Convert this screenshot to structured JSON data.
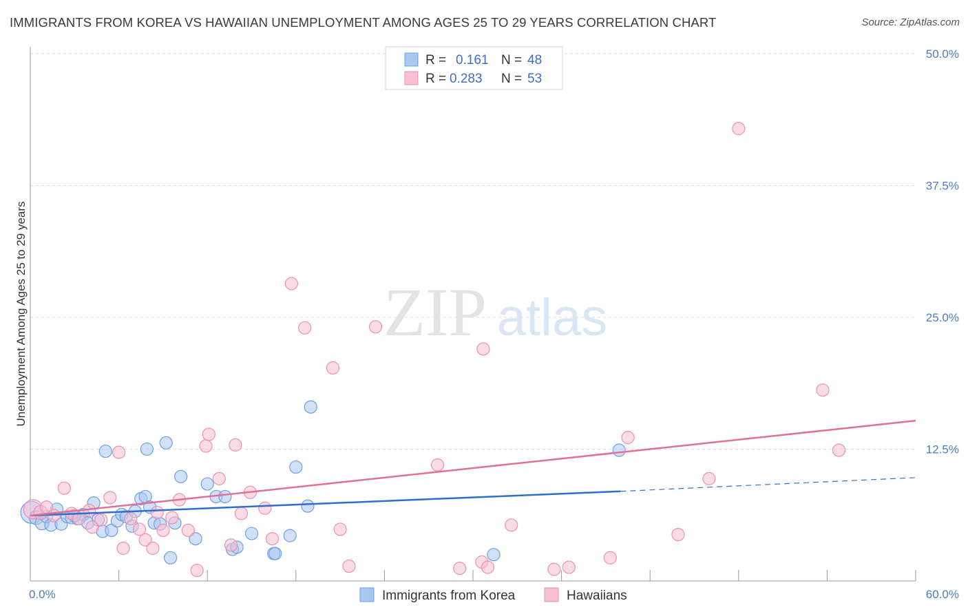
{
  "title": "IMMIGRANTS FROM KOREA VS HAWAIIAN UNEMPLOYMENT AMONG AGES 25 TO 29 YEARS CORRELATION CHART",
  "source": "Source: ZipAtlas.com",
  "watermark": {
    "zip": "ZIP",
    "atlas": "atlas"
  },
  "colors": {
    "korea_fill": "#a9c7ef",
    "korea_stroke": "#6f9fe0",
    "korea_line": "#2f6fcc",
    "hawaii_fill": "#f6c0d2",
    "hawaii_stroke": "#ee8fb0",
    "hawaii_line": "#e0709a",
    "grid": "#dddddd",
    "axis": "#999999",
    "tick_text": "#4a7cc7"
  },
  "chart_data": {
    "type": "scatter",
    "title": "IMMIGRANTS FROM KOREA VS HAWAIIAN UNEMPLOYMENT AMONG AGES 25 TO 29 YEARS CORRELATION CHART",
    "xlabel": "",
    "ylabel": "Unemployment Among Ages 25 to 29 years",
    "xlim": [
      0,
      60
    ],
    "ylim": [
      0,
      52
    ],
    "x_tick_labels": [
      "0.0%",
      "60.0%"
    ],
    "y_ticks": [
      12.5,
      25.0,
      37.5,
      50.0
    ],
    "y_tick_labels": [
      "12.5%",
      "25.0%",
      "37.5%",
      "50.0%"
    ],
    "grid": true,
    "legend": {
      "position": "top-center",
      "entries": [
        {
          "r_label": "R =",
          "r_value": "0.161",
          "n_label": "N =",
          "n_value": "48"
        },
        {
          "r_label": "R =",
          "r_value": "0.283",
          "n_label": "N =",
          "n_value": "53"
        }
      ]
    },
    "bottom_legend": [
      "Immigrants from Korea",
      "Hawaiians"
    ],
    "series": [
      {
        "name": "Immigrants from Korea",
        "trend": {
          "x0": 0,
          "y0": 6.2,
          "x1": 40,
          "y1": 8.5,
          "dash_x1": 60,
          "dash_y1": 9.8
        },
        "points": [
          [
            0.1,
            6.5,
            16
          ],
          [
            0.4,
            6.0,
            10
          ],
          [
            0.8,
            5.5,
            10
          ],
          [
            1.1,
            6.1,
            9
          ],
          [
            1.4,
            5.3,
            9
          ],
          [
            1.8,
            6.8,
            9
          ],
          [
            2.1,
            5.4,
            9
          ],
          [
            2.5,
            6.1,
            9
          ],
          [
            2.8,
            6.0,
            9
          ],
          [
            3.2,
            5.9,
            9
          ],
          [
            3.6,
            6.3,
            9
          ],
          [
            3.9,
            5.5,
            9
          ],
          [
            4.3,
            7.4,
            9
          ],
          [
            4.6,
            5.8,
            9
          ],
          [
            4.9,
            4.7,
            9
          ],
          [
            5.1,
            12.3,
            9
          ],
          [
            5.5,
            4.8,
            9
          ],
          [
            5.9,
            5.7,
            9
          ],
          [
            6.2,
            6.3,
            9
          ],
          [
            6.5,
            6.1,
            9
          ],
          [
            6.9,
            5.2,
            9
          ],
          [
            7.1,
            6.6,
            9
          ],
          [
            7.5,
            7.8,
            9
          ],
          [
            7.8,
            8.0,
            9
          ],
          [
            7.9,
            12.5,
            9
          ],
          [
            8.1,
            7.0,
            9
          ],
          [
            8.4,
            5.5,
            9
          ],
          [
            8.8,
            5.4,
            9
          ],
          [
            9.2,
            13.1,
            9
          ],
          [
            9.5,
            2.2,
            9
          ],
          [
            9.8,
            5.5,
            9
          ],
          [
            10.2,
            9.9,
            9
          ],
          [
            11.2,
            4.0,
            9
          ],
          [
            12.0,
            9.2,
            9
          ],
          [
            12.6,
            8.0,
            9
          ],
          [
            13.2,
            8.0,
            9
          ],
          [
            13.7,
            3.0,
            9
          ],
          [
            14.0,
            3.2,
            9
          ],
          [
            15.0,
            4.5,
            9
          ],
          [
            16.5,
            2.6,
            9
          ],
          [
            16.6,
            2.6,
            9
          ],
          [
            17.6,
            4.3,
            9
          ],
          [
            18.0,
            10.8,
            9
          ],
          [
            18.8,
            7.1,
            9
          ],
          [
            19.0,
            16.5,
            9
          ],
          [
            31.4,
            2.5,
            9
          ],
          [
            39.9,
            12.4,
            9
          ],
          [
            3.0,
            6.2,
            9
          ]
        ]
      },
      {
        "name": "Hawaiians",
        "trend": {
          "x0": 0,
          "y0": 6.2,
          "x1": 60,
          "y1": 15.2
        },
        "points": [
          [
            0.2,
            6.8,
            14
          ],
          [
            0.7,
            6.5,
            10
          ],
          [
            1.1,
            7.0,
            9
          ],
          [
            1.6,
            6.2,
            9
          ],
          [
            2.3,
            8.8,
            9
          ],
          [
            2.8,
            6.4,
            9
          ],
          [
            3.3,
            5.9,
            9
          ],
          [
            4.0,
            6.7,
            9
          ],
          [
            4.2,
            5.1,
            9
          ],
          [
            4.8,
            5.8,
            9
          ],
          [
            5.4,
            7.9,
            9
          ],
          [
            6.0,
            12.2,
            9
          ],
          [
            6.3,
            3.1,
            9
          ],
          [
            6.8,
            5.9,
            9
          ],
          [
            7.4,
            4.9,
            9
          ],
          [
            7.8,
            3.9,
            9
          ],
          [
            8.3,
            3.1,
            9
          ],
          [
            8.6,
            6.5,
            9
          ],
          [
            9.0,
            4.8,
            9
          ],
          [
            9.6,
            6.0,
            9
          ],
          [
            10.1,
            7.7,
            9
          ],
          [
            10.7,
            4.8,
            9
          ],
          [
            11.3,
            1.0,
            9
          ],
          [
            11.9,
            12.8,
            9
          ],
          [
            12.1,
            13.9,
            9
          ],
          [
            12.8,
            9.7,
            9
          ],
          [
            13.6,
            3.4,
            9
          ],
          [
            13.9,
            12.9,
            9
          ],
          [
            14.3,
            6.4,
            9
          ],
          [
            14.9,
            8.4,
            9
          ],
          [
            15.9,
            6.9,
            9
          ],
          [
            16.4,
            4.0,
            9
          ],
          [
            17.7,
            28.2,
            9
          ],
          [
            18.6,
            24.0,
            9
          ],
          [
            20.5,
            20.2,
            9
          ],
          [
            21.0,
            4.9,
            9
          ],
          [
            21.6,
            1.4,
            9
          ],
          [
            23.4,
            24.1,
            9
          ],
          [
            27.6,
            11.0,
            9
          ],
          [
            29.1,
            1.2,
            9
          ],
          [
            30.6,
            1.8,
            9
          ],
          [
            30.7,
            22.0,
            9
          ],
          [
            31.0,
            1.3,
            9
          ],
          [
            32.6,
            5.3,
            9
          ],
          [
            35.5,
            1.1,
            9
          ],
          [
            36.5,
            1.3,
            9
          ],
          [
            39.3,
            2.2,
            9
          ],
          [
            40.5,
            13.6,
            9
          ],
          [
            43.9,
            4.4,
            9
          ],
          [
            46.0,
            9.7,
            9
          ],
          [
            48.0,
            42.9,
            9
          ],
          [
            53.7,
            18.1,
            9
          ],
          [
            54.8,
            12.4,
            9
          ]
        ]
      }
    ]
  }
}
